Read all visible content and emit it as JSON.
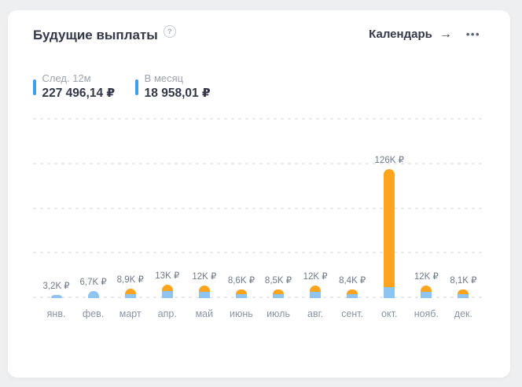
{
  "card": {
    "title": "Будущие выплаты"
  },
  "icons": {
    "help": "?",
    "arrow_right": "→",
    "more": "•••"
  },
  "header": {
    "calendar_label": "Календарь"
  },
  "stats": [
    {
      "label": "След. 12м",
      "value": "227 496,14 ₽",
      "marker_color": "#3FA0E8"
    },
    {
      "label": "В месяц",
      "value": "18 958,01 ₽",
      "marker_color": "#3FA0E8"
    }
  ],
  "chart_data": {
    "type": "bar",
    "stacked": true,
    "title": "",
    "xlabel": "",
    "ylabel": "",
    "grid": true,
    "legend": "none",
    "ylim": [
      0,
      174
    ],
    "gridline_step_k": 43.5,
    "categories": [
      "янв.",
      "фев.",
      "март",
      "апр.",
      "май",
      "июнь",
      "июль",
      "авг.",
      "сент.",
      "окт.",
      "нояб.",
      "дек."
    ],
    "series": [
      {
        "name": "series-blue",
        "color": "#8FC3F0",
        "values": [
          3.2,
          6.7,
          4.2,
          6.9,
          6.1,
          4.2,
          4.2,
          6.1,
          4.2,
          10.8,
          6.1,
          4.2
        ]
      },
      {
        "name": "series-orange",
        "color": "#FFA41F",
        "values": [
          0,
          0,
          4.7,
          6.1,
          5.9,
          4.4,
          4.3,
          5.9,
          4.2,
          115.2,
          5.9,
          3.9
        ]
      }
    ],
    "totals_k": [
      3.2,
      6.7,
      8.9,
      13,
      12,
      8.6,
      8.5,
      12,
      8.4,
      126,
      12,
      8.1
    ],
    "bar_labels": [
      "3,2K ₽",
      "6,7K ₽",
      "8,9K ₽",
      "13K ₽",
      "12K ₽",
      "8,6K ₽",
      "8,5K ₽",
      "12K ₽",
      "8,4K ₽",
      "126K ₽",
      "12K ₽",
      "8,1K ₽"
    ]
  },
  "colors": {
    "background": "#EEEFF1",
    "card": "#FFFFFF",
    "title_text": "#333849",
    "muted_label": "#9DA3AD",
    "month_label": "#8A94A4",
    "bar_value_label": "#6E7987",
    "gridline": "#E8EAED",
    "accent_blue": "#3FA0E8",
    "bar_blue": "#8FC3F0",
    "bar_orange": "#FFA41F"
  }
}
